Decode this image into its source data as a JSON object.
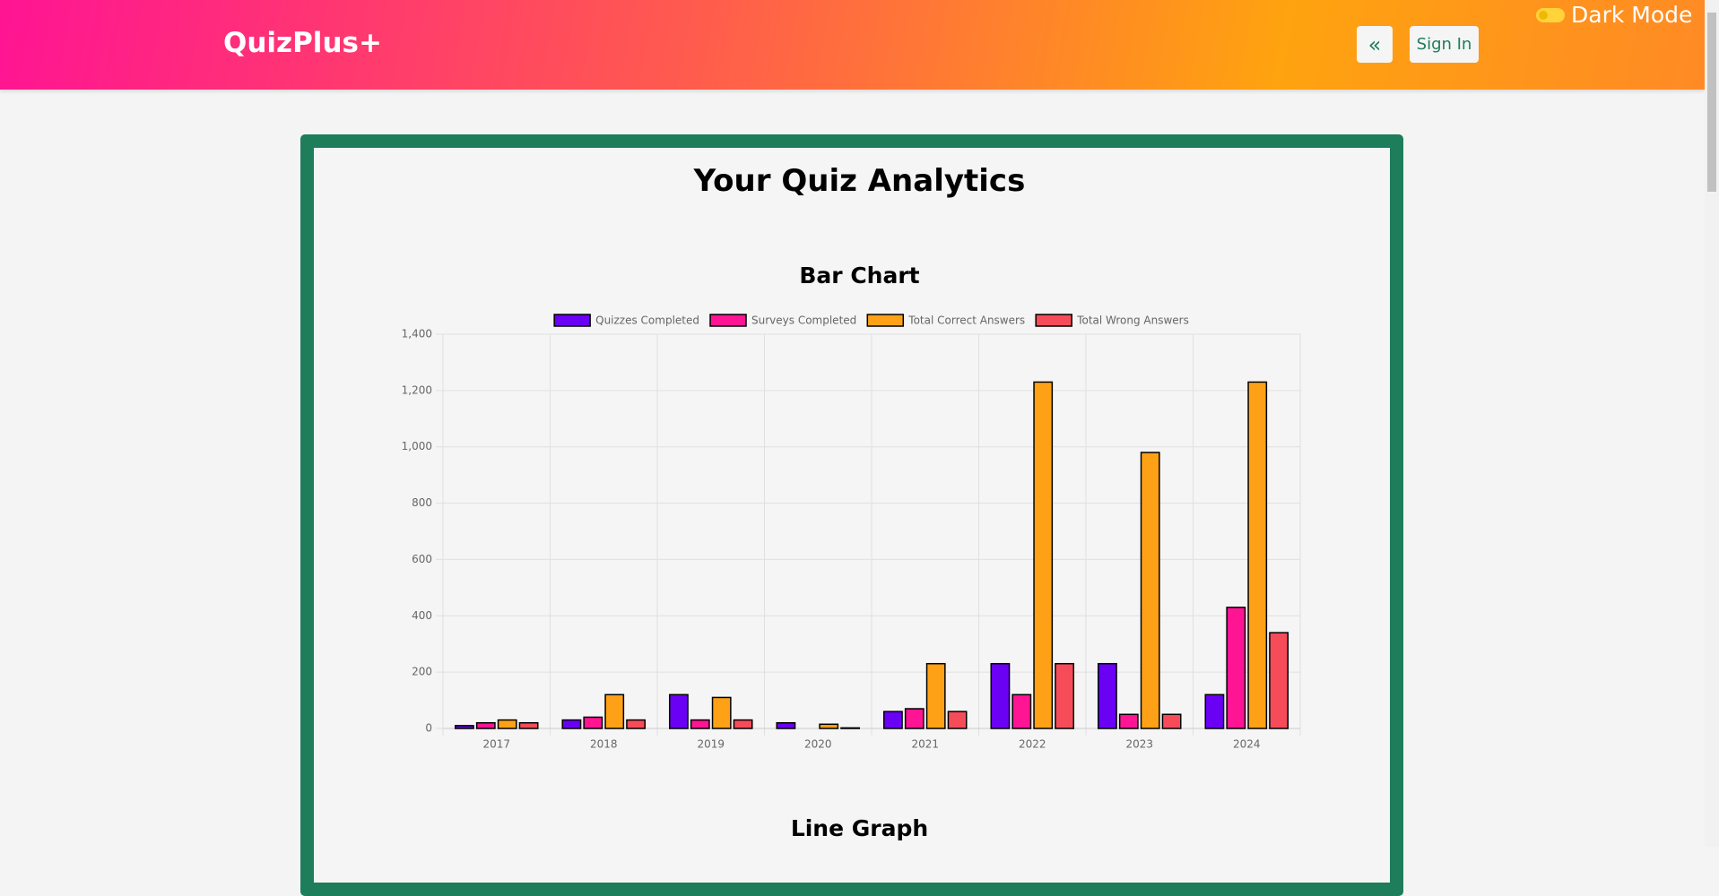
{
  "header": {
    "brand": "QuizPlus+",
    "back": "«",
    "sign_in": "Sign In",
    "dark_mode": "Dark Mode"
  },
  "page": {
    "title": "Your Quiz Analytics",
    "next_heading": "Line Graph"
  },
  "chart_data": {
    "type": "bar",
    "title": "Bar Chart",
    "categories": [
      "2017",
      "2018",
      "2019",
      "2020",
      "2021",
      "2022",
      "2023",
      "2024"
    ],
    "series": [
      {
        "name": "Quizzes Completed",
        "color": "#6a00f4",
        "values": [
          10,
          30,
          120,
          20,
          60,
          230,
          230,
          120
        ]
      },
      {
        "name": "Surveys Completed",
        "color": "#ff1493",
        "values": [
          20,
          40,
          30,
          0,
          70,
          120,
          50,
          430
        ]
      },
      {
        "name": "Total Correct Answers",
        "color": "#ffa116",
        "values": [
          30,
          120,
          110,
          15,
          230,
          1230,
          980,
          1230
        ]
      },
      {
        "name": "Total Wrong Answers",
        "color": "#f64c5a",
        "values": [
          20,
          30,
          30,
          2,
          60,
          230,
          50,
          340
        ]
      }
    ],
    "ylim": [
      0,
      1400
    ],
    "yticks": [
      0,
      200,
      400,
      600,
      800,
      {
        "value": 1000,
        "label": "1,000"
      },
      {
        "value": 1200,
        "label": "1,200"
      },
      {
        "value": 1400,
        "label": "1,400"
      }
    ],
    "grid": true,
    "legend": "top"
  }
}
